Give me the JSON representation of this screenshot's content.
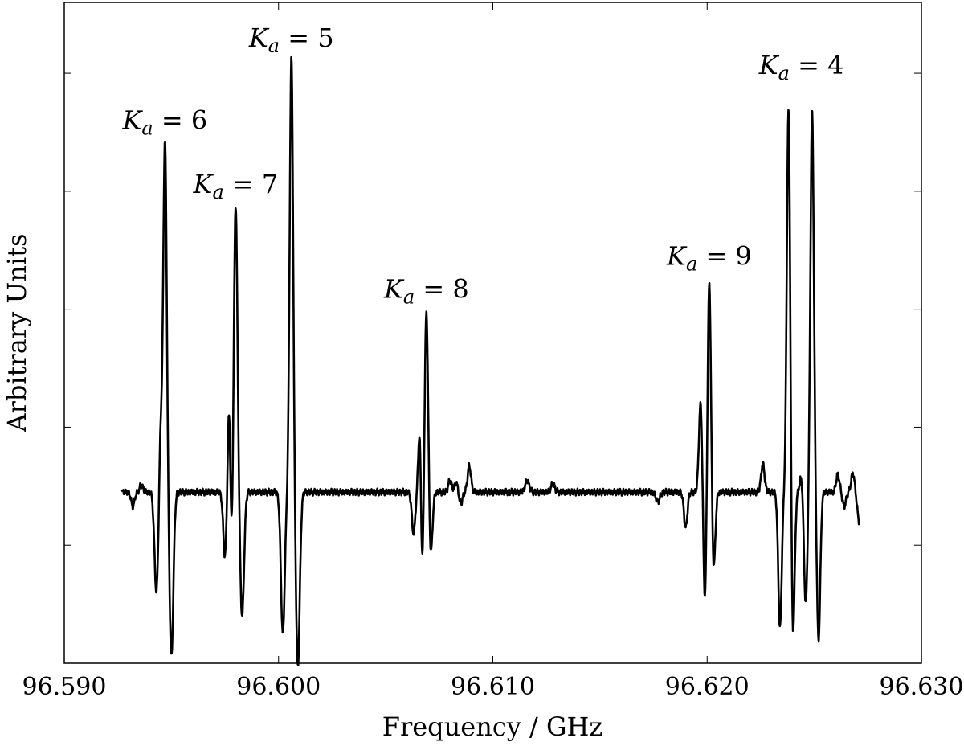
{
  "chart_data": {
    "type": "line",
    "title": "",
    "xlabel": "Frequency / GHz",
    "ylabel": "Arbitrary Units",
    "xlim": [
      96.59,
      96.63
    ],
    "ylim": [
      -1.45,
      4.15
    ],
    "xticks": [
      96.59,
      96.6,
      96.61,
      96.62,
      96.63
    ],
    "xtick_labels": [
      "96.590",
      "96.600",
      "96.610",
      "96.620",
      "96.630"
    ],
    "yticks": [
      -1.45,
      -0.45,
      0.55,
      1.55,
      2.55,
      3.55
    ],
    "grid": false,
    "legend": "none",
    "line_color": "#000000",
    "baseline": 0.0,
    "baseline_range": [
      96.5927,
      96.6271
    ],
    "annotations": [
      {
        "main": "K",
        "sub": "a",
        "rest": " = 6",
        "x": 96.5947,
        "y": 2.98
      },
      {
        "main": "K",
        "sub": "a",
        "rest": " = 7",
        "x": 96.598,
        "y": 2.44
      },
      {
        "main": "K",
        "sub": "a",
        "rest": " = 5",
        "x": 96.6006,
        "y": 3.68
      },
      {
        "main": "K",
        "sub": "a",
        "rest": " = 8",
        "x": 96.6069,
        "y": 1.55
      },
      {
        "main": "K",
        "sub": "a",
        "rest": " = 9",
        "x": 96.6201,
        "y": 1.83
      },
      {
        "main": "K",
        "sub": "a",
        "rest": " = 4",
        "x": 96.6244,
        "y": 3.45
      }
    ],
    "features": [
      {
        "x": 96.5932,
        "a": -0.12,
        "w": 8e-05
      },
      {
        "x": 96.5936,
        "a": 0.06,
        "w": 8e-05
      },
      {
        "x": 96.5943,
        "a": -0.85,
        "w": 9e-05
      },
      {
        "x": 96.5945,
        "a": 0.55,
        "w": 7e-05
      },
      {
        "x": 96.5947,
        "a": 2.98,
        "w": 8e-05
      },
      {
        "x": 96.595,
        "a": -1.4,
        "w": 9e-05
      },
      {
        "x": 96.5975,
        "a": -0.55,
        "w": 8e-05
      },
      {
        "x": 96.5977,
        "a": 0.8,
        "w": 7e-05
      },
      {
        "x": 96.5978,
        "a": -0.6,
        "w": 6e-05
      },
      {
        "x": 96.598,
        "a": 2.44,
        "w": 8e-05
      },
      {
        "x": 96.5983,
        "a": -1.05,
        "w": 9e-05
      },
      {
        "x": 96.6002,
        "a": -1.2,
        "w": 9e-05
      },
      {
        "x": 96.6006,
        "a": 3.68,
        "w": 8e-05
      },
      {
        "x": 96.6009,
        "a": -1.48,
        "w": 9e-05
      },
      {
        "x": 96.6063,
        "a": -0.35,
        "w": 8e-05
      },
      {
        "x": 96.6066,
        "a": 0.68,
        "w": 7e-05
      },
      {
        "x": 96.6067,
        "a": -0.82,
        "w": 7e-05
      },
      {
        "x": 96.6069,
        "a": 1.55,
        "w": 8e-05
      },
      {
        "x": 96.6071,
        "a": -0.55,
        "w": 8e-05
      },
      {
        "x": 96.608,
        "a": 0.1,
        "w": 8e-05
      },
      {
        "x": 96.6083,
        "a": 0.08,
        "w": 8e-05
      },
      {
        "x": 96.6085,
        "a": -0.1,
        "w": 8e-05
      },
      {
        "x": 96.6089,
        "a": 0.22,
        "w": 8e-05
      },
      {
        "x": 96.6116,
        "a": 0.1,
        "w": 9e-05
      },
      {
        "x": 96.6128,
        "a": 0.07,
        "w": 9e-05
      },
      {
        "x": 96.6177,
        "a": -0.08,
        "w": 9e-05
      },
      {
        "x": 96.619,
        "a": -0.3,
        "w": 8e-05
      },
      {
        "x": 96.6197,
        "a": 0.78,
        "w": 8e-05
      },
      {
        "x": 96.6199,
        "a": -0.98,
        "w": 8e-05
      },
      {
        "x": 96.6201,
        "a": 1.83,
        "w": 8e-05
      },
      {
        "x": 96.6203,
        "a": -0.68,
        "w": 8e-05
      },
      {
        "x": 96.6226,
        "a": 0.24,
        "w": 8e-05
      },
      {
        "x": 96.6234,
        "a": -1.15,
        "w": 8e-05
      },
      {
        "x": 96.6238,
        "a": 3.3,
        "w": 8e-05
      },
      {
        "x": 96.624,
        "a": -1.28,
        "w": 8e-05
      },
      {
        "x": 96.6244,
        "a": 0.14,
        "w": 8e-05
      },
      {
        "x": 96.6246,
        "a": -0.95,
        "w": 8e-05
      },
      {
        "x": 96.6249,
        "a": 3.22,
        "w": 8e-05
      },
      {
        "x": 96.6252,
        "a": -1.25,
        "w": 8e-05
      },
      {
        "x": 96.6261,
        "a": 0.15,
        "w": 8e-05
      },
      {
        "x": 96.6264,
        "a": -0.12,
        "w": 8e-05
      },
      {
        "x": 96.6268,
        "a": 0.16,
        "w": 8e-05
      },
      {
        "x": 96.6271,
        "a": -0.25,
        "w": 9e-05
      }
    ]
  }
}
